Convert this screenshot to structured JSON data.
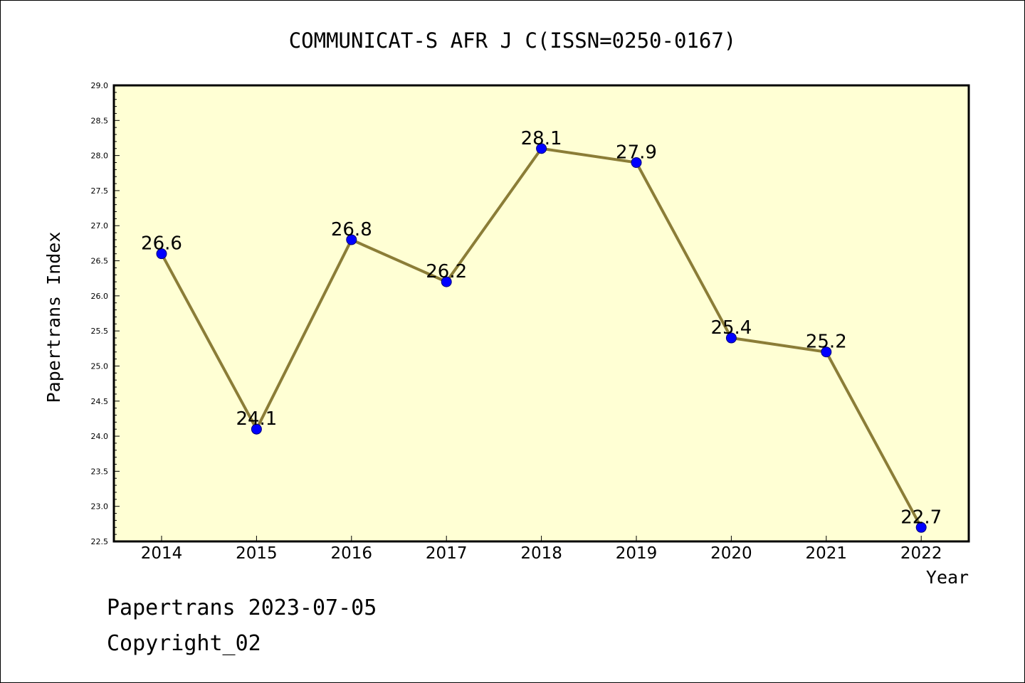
{
  "chart_data": {
    "type": "line",
    "title": "COMMUNICAT-S AFR J C(ISSN=0250-0167)",
    "xlabel": "Year",
    "ylabel": "Papertrans Index",
    "categories": [
      "2014",
      "2015",
      "2016",
      "2017",
      "2018",
      "2019",
      "2020",
      "2021",
      "2022"
    ],
    "values": [
      26.6,
      24.1,
      26.8,
      26.2,
      28.1,
      27.9,
      25.4,
      25.2,
      22.7
    ],
    "value_labels": [
      "26.6",
      "24.1",
      "26.8",
      "26.2",
      "28.1",
      "27.9",
      "25.4",
      "25.2",
      "22.7"
    ],
    "ylim": [
      22.5,
      29.0
    ],
    "yticks": [
      "22.5",
      "23.0",
      "23.5",
      "24.0",
      "24.5",
      "25.0",
      "25.5",
      "26.0",
      "26.5",
      "27.0",
      "27.5",
      "28.0",
      "28.5",
      "29.0"
    ],
    "grid": false,
    "legend": "none",
    "colors": {
      "plot_background": "#ffffd4",
      "line": "#8b7d37",
      "marker": "#0000ff",
      "marker_edge": "#00007a"
    }
  },
  "footer": {
    "stamp": "Papertrans 2023-07-05",
    "copyright": "Copyright_02"
  }
}
